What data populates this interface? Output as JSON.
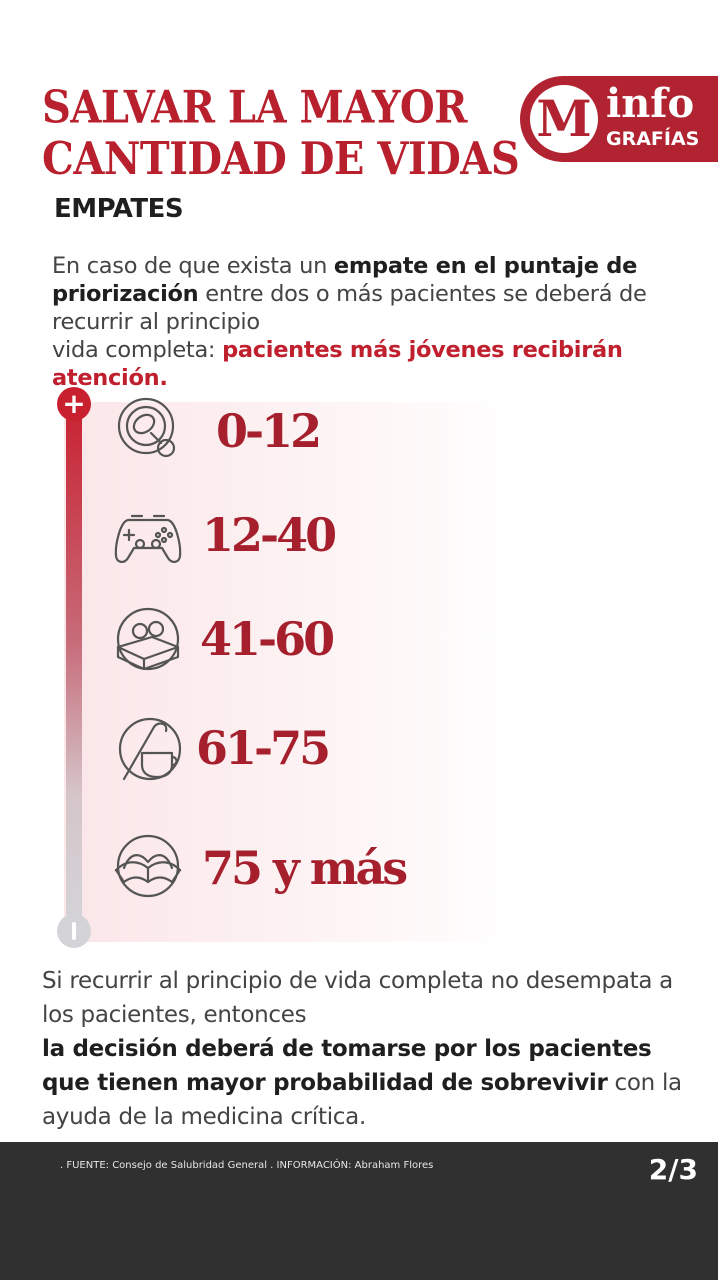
{
  "header": {
    "title_line1": "SALVAR LA MAYOR",
    "title_line2": "CANTIDAD DE VIDAS"
  },
  "logo": {
    "letter": "M",
    "word1": "info",
    "word2": "GRAFÍAS"
  },
  "section_heading": "EMPATES",
  "intro": {
    "part1": "En caso de que exista un ",
    "bold1": "empate en el puntaje de priorización",
    "part2": " entre dos o más pacientes se deberá de recurrir al principio",
    "part3": "vida completa: ",
    "highlight": "pacientes más jóvenes recibirán atención."
  },
  "scale": {
    "top_symbol": "+",
    "top_color": "#c9202f",
    "bottom_color": "#d4d4d8"
  },
  "age_groups": [
    {
      "label": "0-12",
      "icon": "pacifier-icon"
    },
    {
      "label": "12-40",
      "icon": "gamepad-icon"
    },
    {
      "label": "41-60",
      "icon": "glasses-books-icon"
    },
    {
      "label": "61-75",
      "icon": "cane-cup-icon"
    },
    {
      "label": "75 y más",
      "icon": "open-book-icon"
    }
  ],
  "outro": {
    "part1": "Si recurrir al principio de vida completa no desempata a los pacientes, entonces",
    "bold": "la decisión deberá de tomarse por los pacientes que tienen mayor probabilidad de sobrevivir",
    "part2": " con la ayuda de la medicina crítica."
  },
  "footer": {
    "source": ". FUENTE: Consejo de Salubridad General . INFORMACIÓN: Abraham Flores",
    "page": "2/3"
  },
  "colors": {
    "brand_red": "#b9202e",
    "age_red": "#a5202c",
    "footer_bg": "#303030"
  }
}
